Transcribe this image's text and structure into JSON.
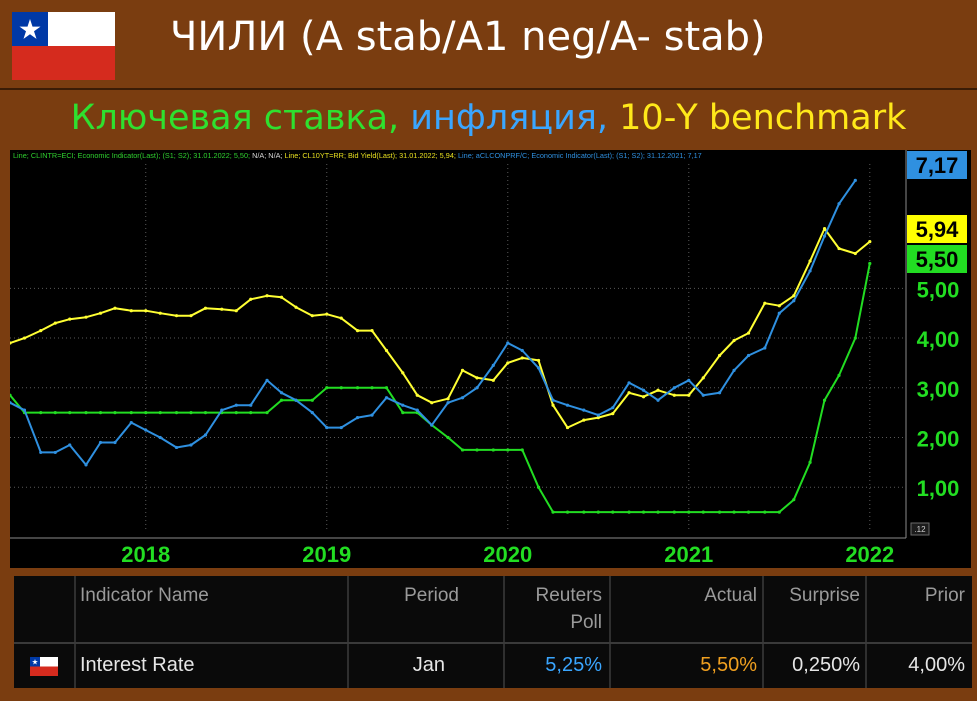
{
  "header": {
    "title": "ЧИЛИ (A stab/A1 neg/A- stab)",
    "subtitle_parts": [
      {
        "text": "Ключевая ставка, ",
        "color": "#2fe02f"
      },
      {
        "text": "инфляция, ",
        "color": "#3aa6ff"
      },
      {
        "text": "10-Y benchmark",
        "color": "#ffe81a"
      }
    ]
  },
  "chart_data": {
    "type": "line",
    "legend_text": [
      {
        "text": "Line; CLINTR=ECI; Economic Indicator(Last); (S1; S2); 31.01.2022; 5,50; ",
        "color": "#2fd02f"
      },
      {
        "text": "N/A; N/A; ",
        "color": "#d8d8d8"
      },
      {
        "text": "Line; CL10YT=RR; Bid Yield(Last); 31.01.2022; 5,94; ",
        "color": "#e8e020"
      },
      {
        "text": "Line; aCLCONPRF/C; Economic Indicator(Last); (S1; S2); 31.12.2021; 7,17",
        "color": "#2f90e0"
      }
    ],
    "x_ticks": [
      "2018",
      "2019",
      "2020",
      "2021",
      "2022"
    ],
    "x_tick_values": [
      2018.0,
      2019.0,
      2020.0,
      2021.0,
      2022.0
    ],
    "xlim": [
      2017.25,
      2022.2
    ],
    "y_ticks": [
      "1,00",
      "2,00",
      "3,00",
      "4,00",
      "5,00"
    ],
    "y_tick_values": [
      1,
      2,
      3,
      4,
      5
    ],
    "ylim": [
      0.1,
      7.5
    ],
    "corner_label": ".12",
    "value_labels": [
      {
        "text": "7,17",
        "value": 7.17,
        "bg": "#2f90e0",
        "fg": "#000000"
      },
      {
        "text": "5,94",
        "value": 5.94,
        "bg": "#ffff00",
        "fg": "#000000"
      },
      {
        "text": "5,50",
        "value": 5.5,
        "bg": "#22dd22",
        "fg": "#000000"
      }
    ],
    "series": [
      {
        "color": "#ffff33",
        "x": [
          2017.25,
          2017.33,
          2017.42,
          2017.5,
          2017.58,
          2017.67,
          2017.75,
          2017.83,
          2017.92,
          2018.0,
          2018.08,
          2018.17,
          2018.25,
          2018.33,
          2018.42,
          2018.5,
          2018.58,
          2018.67,
          2018.75,
          2018.83,
          2018.92,
          2019.0,
          2019.08,
          2019.17,
          2019.25,
          2019.33,
          2019.42,
          2019.5,
          2019.58,
          2019.67,
          2019.75,
          2019.83,
          2019.92,
          2020.0,
          2020.08,
          2020.17,
          2020.25,
          2020.33,
          2020.42,
          2020.5,
          2020.58,
          2020.67,
          2020.75,
          2020.83,
          2020.92,
          2021.0,
          2021.08,
          2021.17,
          2021.25,
          2021.33,
          2021.42,
          2021.5,
          2021.58,
          2021.67,
          2021.75,
          2021.83,
          2021.92,
          2022.0,
          2022.08
        ],
        "values": [
          3.9,
          4.0,
          4.15,
          4.3,
          4.38,
          4.42,
          4.5,
          4.6,
          4.55,
          4.55,
          4.5,
          4.45,
          4.45,
          4.6,
          4.58,
          4.55,
          4.78,
          4.85,
          4.82,
          4.62,
          4.45,
          4.48,
          4.4,
          4.15,
          4.15,
          3.75,
          3.3,
          2.85,
          2.7,
          2.78,
          3.35,
          3.2,
          3.15,
          3.5,
          3.6,
          3.55,
          2.65,
          2.2,
          2.35,
          2.4,
          2.48,
          2.9,
          2.82,
          2.95,
          2.85,
          2.85,
          3.2,
          3.65,
          3.95,
          4.1,
          4.7,
          4.65,
          4.85,
          5.55,
          6.2,
          5.8,
          5.7,
          5.94,
          null
        ]
      },
      {
        "color": "#22dd22",
        "x": [
          2017.25,
          2017.33,
          2017.42,
          2017.5,
          2017.58,
          2017.67,
          2017.75,
          2017.83,
          2017.92,
          2018.0,
          2018.08,
          2018.17,
          2018.25,
          2018.33,
          2018.42,
          2018.5,
          2018.58,
          2018.67,
          2018.75,
          2018.83,
          2018.92,
          2019.0,
          2019.08,
          2019.17,
          2019.25,
          2019.33,
          2019.42,
          2019.5,
          2019.58,
          2019.67,
          2019.75,
          2019.83,
          2019.92,
          2020.0,
          2020.08,
          2020.17,
          2020.25,
          2020.33,
          2020.42,
          2020.5,
          2020.58,
          2020.67,
          2020.75,
          2020.83,
          2020.92,
          2021.0,
          2021.08,
          2021.17,
          2021.25,
          2021.33,
          2021.42,
          2021.5,
          2021.58,
          2021.67,
          2021.75,
          2021.83,
          2021.92,
          2022.0,
          2022.08
        ],
        "values": [
          2.85,
          2.5,
          2.5,
          2.5,
          2.5,
          2.5,
          2.5,
          2.5,
          2.5,
          2.5,
          2.5,
          2.5,
          2.5,
          2.5,
          2.5,
          2.5,
          2.5,
          2.5,
          2.75,
          2.75,
          2.75,
          3.0,
          3.0,
          3.0,
          3.0,
          3.0,
          2.5,
          2.5,
          2.25,
          2.0,
          1.75,
          1.75,
          1.75,
          1.75,
          1.75,
          1.0,
          0.5,
          0.5,
          0.5,
          0.5,
          0.5,
          0.5,
          0.5,
          0.5,
          0.5,
          0.5,
          0.5,
          0.5,
          0.5,
          0.5,
          0.5,
          0.5,
          0.75,
          1.5,
          2.75,
          3.25,
          4.0,
          5.5,
          null
        ]
      },
      {
        "color": "#2f90e0",
        "x": [
          2017.25,
          2017.33,
          2017.42,
          2017.5,
          2017.58,
          2017.67,
          2017.75,
          2017.83,
          2017.92,
          2018.0,
          2018.08,
          2018.17,
          2018.25,
          2018.33,
          2018.42,
          2018.5,
          2018.58,
          2018.67,
          2018.75,
          2018.83,
          2018.92,
          2019.0,
          2019.08,
          2019.17,
          2019.25,
          2019.33,
          2019.42,
          2019.5,
          2019.58,
          2019.67,
          2019.75,
          2019.83,
          2019.92,
          2020.0,
          2020.08,
          2020.17,
          2020.25,
          2020.33,
          2020.42,
          2020.5,
          2020.58,
          2020.67,
          2020.75,
          2020.83,
          2020.92,
          2021.0,
          2021.08,
          2021.17,
          2021.25,
          2021.33,
          2021.42,
          2021.5,
          2021.58,
          2021.67,
          2021.75,
          2021.83,
          2021.92,
          2022.0,
          2022.08
        ],
        "values": [
          2.7,
          2.55,
          1.7,
          1.7,
          1.85,
          1.45,
          1.9,
          1.9,
          2.3,
          2.15,
          2.0,
          1.8,
          1.85,
          2.05,
          2.55,
          2.65,
          2.65,
          3.15,
          2.9,
          2.75,
          2.5,
          2.2,
          2.2,
          2.4,
          2.45,
          2.8,
          2.65,
          2.55,
          2.25,
          2.7,
          2.8,
          3.0,
          3.45,
          3.9,
          3.75,
          3.4,
          2.75,
          2.65,
          2.55,
          2.45,
          2.6,
          3.1,
          2.95,
          2.75,
          3.0,
          3.15,
          2.85,
          2.9,
          3.35,
          3.65,
          3.8,
          4.5,
          4.75,
          5.35,
          6.05,
          6.7,
          7.17,
          null,
          null
        ]
      }
    ]
  },
  "table": {
    "headers": [
      "Indicator Name",
      "Period",
      "Reuters Poll",
      "Actual",
      "Surprise",
      "Prior"
    ],
    "header_lines": {
      "reuters_1": "Reuters",
      "reuters_2": "Poll"
    },
    "row": {
      "indicator": "Interest Rate",
      "period": "Jan",
      "reuters_poll": "5,25%",
      "actual": "5,50%",
      "surprise": "0,250%",
      "prior": "4,00%"
    },
    "colors": {
      "reuters_poll": "#3aa6ff",
      "actual": "#f0a020",
      "text": "#e6e6e6",
      "header": "#9a9a9a"
    }
  }
}
